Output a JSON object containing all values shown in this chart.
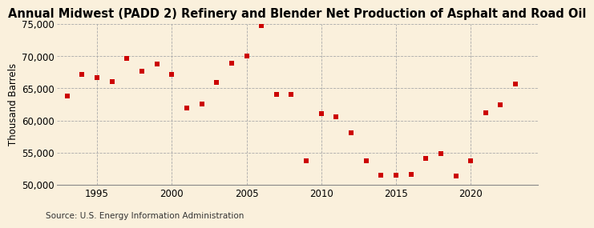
{
  "title": "Annual Midwest (PADD 2) Refinery and Blender Net Production of Asphalt and Road Oil",
  "ylabel": "Thousand Barrels",
  "source": "Source: U.S. Energy Information Administration",
  "years": [
    1993,
    1994,
    1995,
    1996,
    1997,
    1998,
    1999,
    2000,
    2001,
    2002,
    2003,
    2004,
    2005,
    2006,
    2007,
    2008,
    2009,
    2010,
    2011,
    2012,
    2013,
    2014,
    2015,
    2016,
    2017,
    2018,
    2019,
    2020,
    2021,
    2022,
    2023
  ],
  "values": [
    63800,
    67200,
    66700,
    66100,
    69700,
    67700,
    68800,
    67200,
    62000,
    62500,
    65900,
    68900,
    70000,
    74800,
    64000,
    64000,
    53700,
    61100,
    60600,
    58100,
    53700,
    51500,
    51500,
    51600,
    54100,
    54900,
    51400,
    53700,
    61200,
    62400,
    65700
  ],
  "marker_color": "#cc0000",
  "marker_size": 18,
  "bg_color": "#faf0dc",
  "grid_color": "#aaaaaa",
  "ylim": [
    50000,
    75000
  ],
  "yticks": [
    50000,
    55000,
    60000,
    65000,
    70000,
    75000
  ],
  "xtick_positions": [
    1995,
    2000,
    2005,
    2010,
    2015,
    2020
  ],
  "xlim": [
    1992.3,
    2024.5
  ],
  "title_fontsize": 10.5,
  "ylabel_fontsize": 8.5,
  "source_fontsize": 7.5,
  "tick_fontsize": 8.5
}
